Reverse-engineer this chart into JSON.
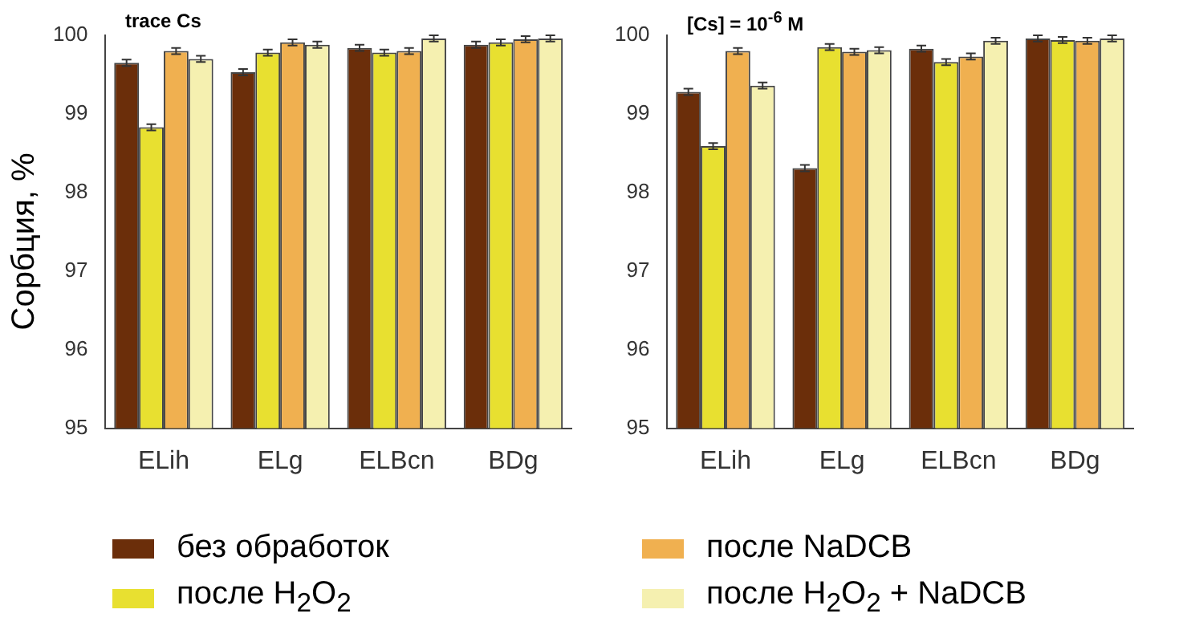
{
  "chart_data": [
    {
      "type": "bar",
      "title": "trace Cs",
      "ylabel": "Сорбция, %",
      "categories": [
        "ELih",
        "ELg",
        "ELBcn",
        "BDg"
      ],
      "ylim": [
        95,
        100
      ],
      "yticks": [
        95,
        96,
        97,
        98,
        99,
        100
      ],
      "legend": "bottom",
      "grid": false,
      "series": [
        {
          "name": "без обработок",
          "color": "#6b2e0a",
          "values": [
            99.65,
            99.53,
            99.84,
            99.88
          ],
          "errors": [
            0.04,
            0.04,
            0.04,
            0.04
          ]
        },
        {
          "name": "после H$_{2}$O$_{2}$",
          "color": "#e8e030",
          "values": [
            98.83,
            99.78,
            99.78,
            99.91
          ],
          "errors": [
            0.04,
            0.04,
            0.04,
            0.04
          ]
        },
        {
          "name": "после NaDCB",
          "color": "#f0b050",
          "values": [
            99.8,
            99.91,
            99.8,
            99.95
          ],
          "errors": [
            0.04,
            0.04,
            0.04,
            0.04
          ]
        },
        {
          "name": "после  H$_{2}$O$_{2}$ + NaDCB",
          "color": "#f5f0b0",
          "values": [
            99.7,
            99.88,
            99.96,
            99.96
          ],
          "errors": [
            0.04,
            0.04,
            0.04,
            0.04
          ]
        }
      ]
    },
    {
      "type": "bar",
      "title": "[Cs] = 10$^{-6}$ M",
      "categories": [
        "ELih",
        "ELg",
        "ELBcn",
        "BDg"
      ],
      "ylim": [
        95,
        100
      ],
      "yticks": [
        95,
        96,
        97,
        98,
        99,
        100
      ],
      "grid": false,
      "series": [
        {
          "color": "#6b2e0a",
          "values": [
            99.28,
            98.31,
            99.83,
            99.96
          ],
          "errors": [
            0.04,
            0.04,
            0.04,
            0.04
          ]
        },
        {
          "color": "#e8e030",
          "values": [
            98.59,
            99.85,
            99.66,
            99.94
          ],
          "errors": [
            0.04,
            0.04,
            0.04,
            0.04
          ]
        },
        {
          "color": "#f0b050",
          "values": [
            99.8,
            99.79,
            99.73,
            99.93
          ],
          "errors": [
            0.04,
            0.04,
            0.04,
            0.04
          ]
        },
        {
          "color": "#f5f0b0",
          "values": [
            99.36,
            99.81,
            99.93,
            99.96
          ],
          "errors": [
            0.04,
            0.04,
            0.04,
            0.04
          ]
        }
      ]
    }
  ]
}
